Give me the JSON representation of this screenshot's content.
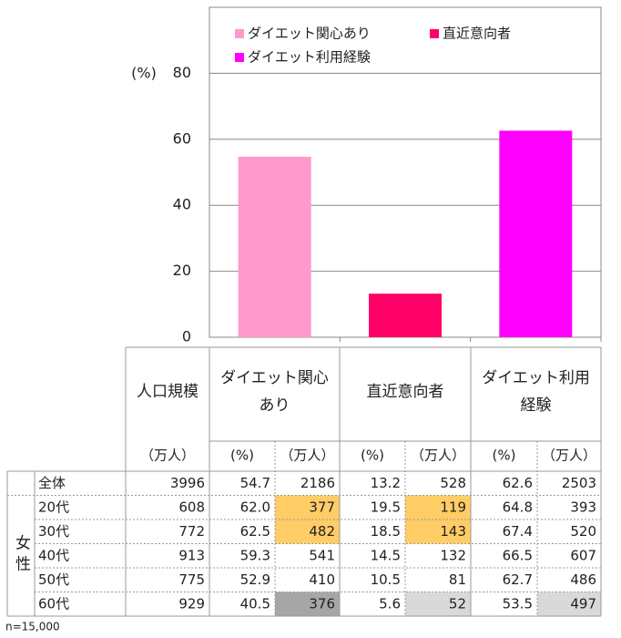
{
  "chart_data": {
    "type": "bar",
    "y_axis_label": "(%)",
    "categories": [
      "ダイエット関心あり",
      "直近意向者",
      "ダイエット利用経験"
    ],
    "values": [
      54.7,
      13.2,
      62.6
    ],
    "colors": [
      "#ff99cc",
      "#ff0066",
      "#ff00ff"
    ],
    "ylim": [
      0,
      100
    ],
    "yticks": [
      0,
      20,
      40,
      60,
      80
    ],
    "grid": true
  },
  "table": {
    "header": {
      "population": "人口規模",
      "groups": [
        [
          "ダイエット関心",
          "あり"
        ],
        [
          "直近意向者"
        ],
        [
          "ダイエット利用",
          "経験"
        ]
      ],
      "units": [
        "（万人）",
        "(%)",
        "（万人）",
        "(%)",
        "（万人）",
        "(%)",
        "（万人）"
      ]
    },
    "group_label": "女性",
    "row_labels": [
      "全体",
      "20代",
      "30代",
      "40代",
      "50代",
      "60代"
    ],
    "rows": [
      [
        "3996",
        "54.7",
        "2186",
        "13.2",
        "528",
        "62.6",
        "2503"
      ],
      [
        "608",
        "62.0",
        "377",
        "19.5",
        "119",
        "64.8",
        "393"
      ],
      [
        "772",
        "62.5",
        "482",
        "18.5",
        "143",
        "67.4",
        "520"
      ],
      [
        "913",
        "59.3",
        "541",
        "14.5",
        "132",
        "66.5",
        "607"
      ],
      [
        "775",
        "52.9",
        "410",
        "10.5",
        "81",
        "62.7",
        "486"
      ],
      [
        "929",
        "40.5",
        "376",
        "5.6",
        "52",
        "53.5",
        "497"
      ]
    ],
    "highlights": [
      {
        "row": 1,
        "col": 1,
        "color": "#ffcc66"
      },
      {
        "row": 2,
        "col": 1,
        "color": "#ffcc66"
      },
      {
        "row": 1,
        "col": 3,
        "color": "#ffcc66"
      },
      {
        "row": 2,
        "col": 3,
        "color": "#ffcc66"
      },
      {
        "row": 5,
        "col": 1,
        "color": "#a6a6a6"
      },
      {
        "row": 5,
        "col": 3,
        "color": "#d9d9d9"
      },
      {
        "row": 5,
        "col": 5,
        "color": "#d9d9d9"
      }
    ]
  },
  "footnote": "n=15,000"
}
